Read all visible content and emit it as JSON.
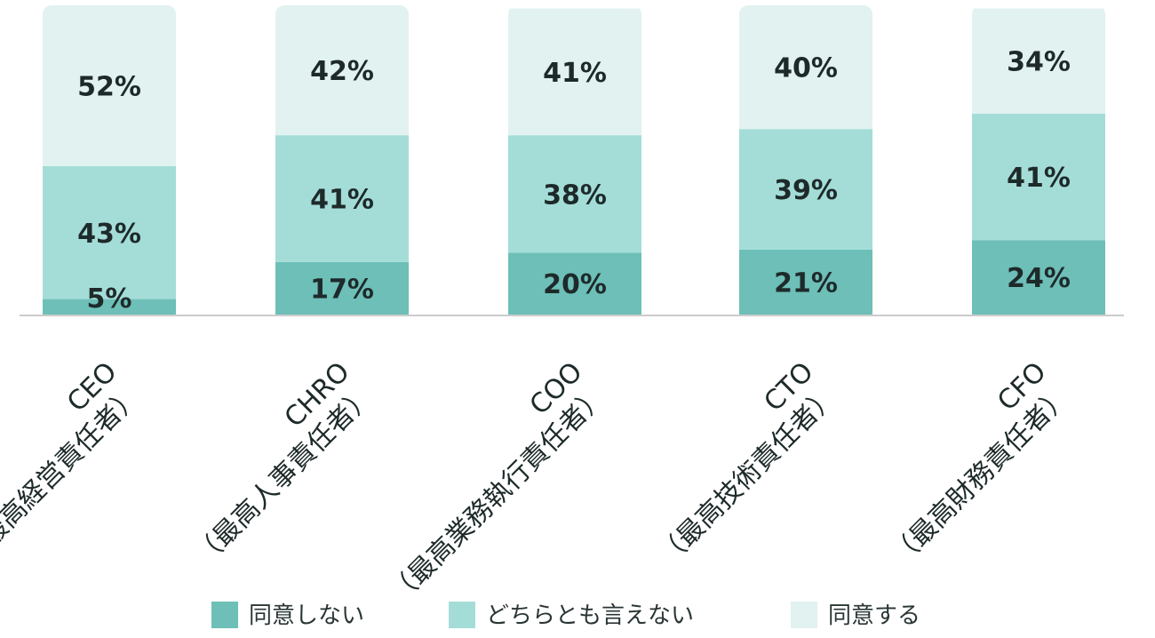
{
  "chart_data": {
    "type": "bar",
    "stacked": true,
    "percent": true,
    "categories": [
      [
        "CEO",
        "（最高経営責任者）"
      ],
      [
        "CHRO",
        "（最高人事責任者）"
      ],
      [
        "COO",
        "（最高業務執行責任者）"
      ],
      [
        "CTO",
        "（最高技術責任者）"
      ],
      [
        "CFO",
        "（最高財務責任者）"
      ]
    ],
    "series": [
      {
        "name": "同意しない",
        "color": "#6dbfb8",
        "values": [
          5,
          17,
          20,
          21,
          24
        ]
      },
      {
        "name": "どちらとも言えない",
        "color": "#a4ddd8",
        "values": [
          43,
          41,
          38,
          39,
          41
        ]
      },
      {
        "name": "同意する",
        "color": "#e1f2f0",
        "values": [
          52,
          42,
          41,
          40,
          34
        ]
      }
    ],
    "value_suffix": "%",
    "ylim": [
      0,
      100
    ],
    "grid": false,
    "legend": "bottom-center",
    "category_label_rotation": -45
  }
}
